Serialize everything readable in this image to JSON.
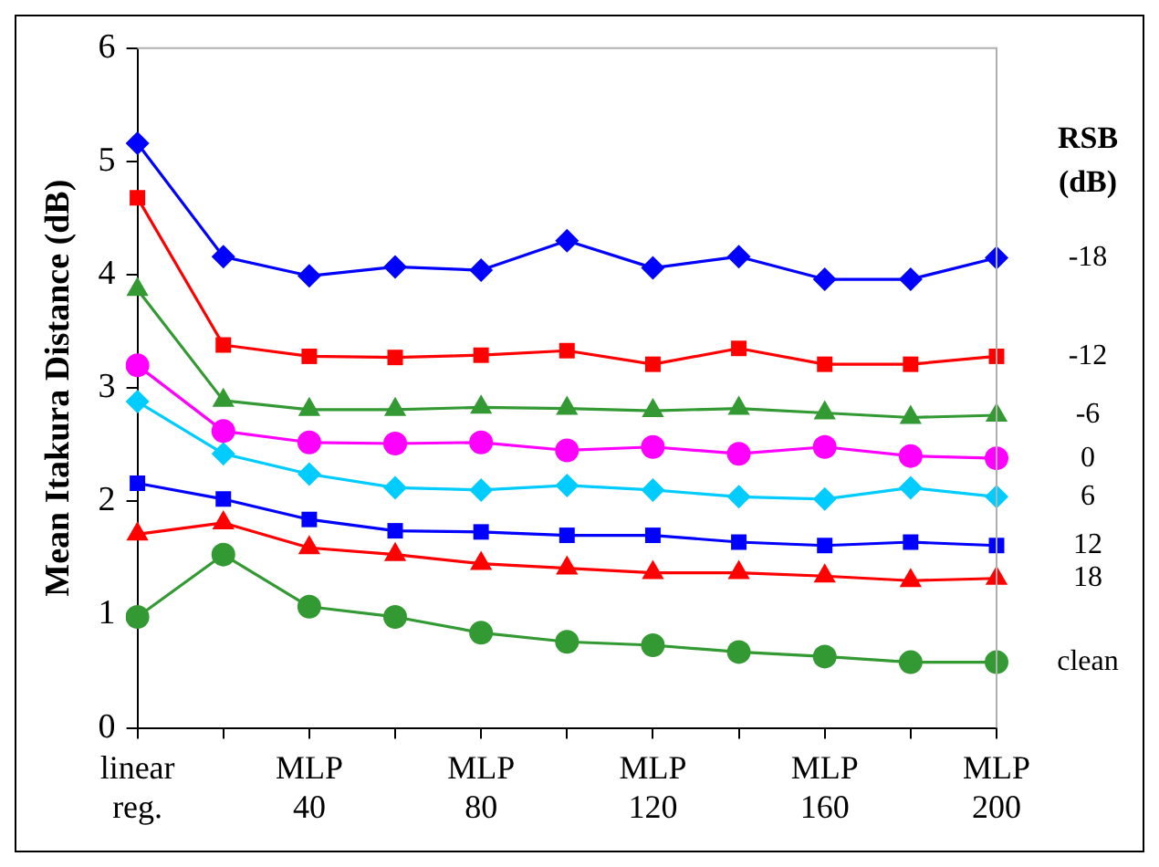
{
  "chart_data": {
    "type": "line",
    "ylabel": "Mean Itakura Distance (dB)",
    "legend_title": "RSB (dB)",
    "categories": [
      "linear reg.",
      null,
      "MLP 40",
      null,
      "MLP 80",
      null,
      "MLP 120",
      null,
      "MLP 160",
      null,
      "MLP 200"
    ],
    "ylim": [
      0,
      6
    ],
    "yticks": [
      0,
      1,
      2,
      3,
      4,
      5,
      6
    ],
    "series": [
      {
        "name": "-18",
        "color": "#0000ff",
        "marker": "diamond",
        "values": [
          5.16,
          4.16,
          3.99,
          4.07,
          4.04,
          4.3,
          4.06,
          4.16,
          3.96,
          3.96,
          4.15
        ]
      },
      {
        "name": "-12",
        "color": "#ff0000",
        "marker": "square",
        "values": [
          4.68,
          3.38,
          3.28,
          3.27,
          3.29,
          3.33,
          3.21,
          3.35,
          3.21,
          3.21,
          3.28
        ]
      },
      {
        "name": "-6",
        "color": "#339933",
        "marker": "triangle",
        "values": [
          3.87,
          2.89,
          2.81,
          2.81,
          2.83,
          2.82,
          2.8,
          2.82,
          2.78,
          2.74,
          2.76
        ]
      },
      {
        "name": "0",
        "color": "#ff00ff",
        "marker": "circle",
        "values": [
          3.2,
          2.62,
          2.52,
          2.51,
          2.52,
          2.45,
          2.48,
          2.42,
          2.48,
          2.4,
          2.38
        ]
      },
      {
        "name": "6",
        "color": "#00ccff",
        "marker": "diamond",
        "values": [
          2.88,
          2.42,
          2.24,
          2.12,
          2.1,
          2.14,
          2.1,
          2.04,
          2.02,
          2.12,
          2.04
        ]
      },
      {
        "name": "12",
        "color": "#0000ff",
        "marker": "square",
        "values": [
          2.16,
          2.02,
          1.84,
          1.74,
          1.73,
          1.7,
          1.7,
          1.64,
          1.61,
          1.64,
          1.61
        ]
      },
      {
        "name": "18",
        "color": "#ff0000",
        "marker": "triangle",
        "values": [
          1.71,
          1.81,
          1.59,
          1.53,
          1.45,
          1.41,
          1.37,
          1.37,
          1.34,
          1.3,
          1.32
        ]
      },
      {
        "name": "clean",
        "color": "#339933",
        "marker": "circle",
        "values": [
          0.98,
          1.53,
          1.07,
          0.98,
          0.84,
          0.76,
          0.73,
          0.67,
          0.63,
          0.58,
          0.58
        ]
      }
    ]
  }
}
